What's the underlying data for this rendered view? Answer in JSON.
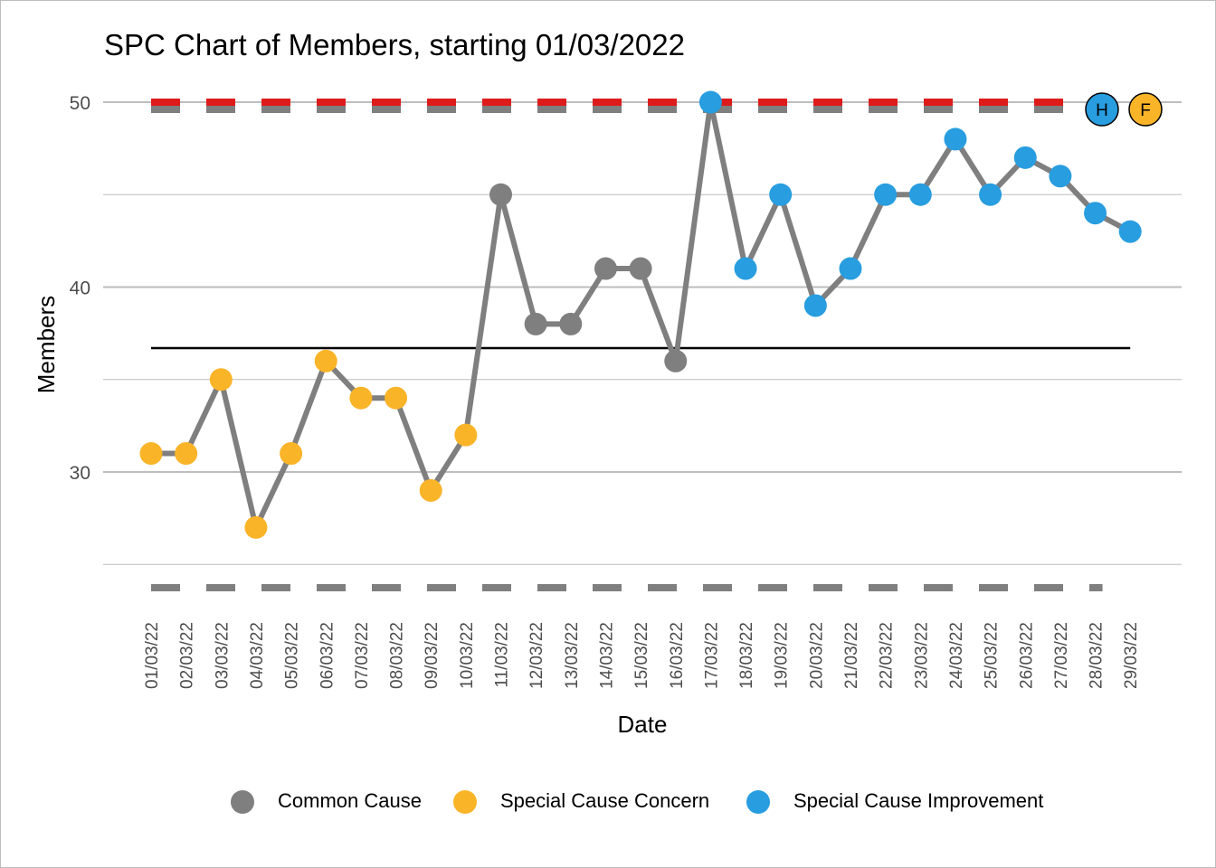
{
  "chart_data": {
    "type": "line",
    "title": "SPC Chart of Members, starting 01/03/2022",
    "xlabel": "Date",
    "ylabel": "Members",
    "ylim": [
      25,
      50
    ],
    "yticks": [
      30,
      40,
      50
    ],
    "grid": true,
    "legend_position": "bottom",
    "categories": [
      "01/03/22",
      "02/03/22",
      "03/03/22",
      "04/03/22",
      "05/03/22",
      "06/03/22",
      "07/03/22",
      "08/03/22",
      "09/03/22",
      "10/03/22",
      "11/03/22",
      "12/03/22",
      "13/03/22",
      "14/03/22",
      "15/03/22",
      "16/03/22",
      "17/03/22",
      "18/03/22",
      "19/03/22",
      "20/03/22",
      "21/03/22",
      "22/03/22",
      "23/03/22",
      "24/03/22",
      "25/03/22",
      "26/03/22",
      "27/03/22",
      "28/03/22",
      "29/03/22"
    ],
    "values": [
      31,
      31,
      35,
      27,
      31,
      36,
      34,
      34,
      29,
      32,
      45,
      38,
      38,
      41,
      41,
      36,
      50,
      41,
      45,
      39,
      41,
      45,
      45,
      48,
      45,
      47,
      46,
      44,
      43
    ],
    "point_class": [
      "concern",
      "concern",
      "concern",
      "concern",
      "concern",
      "concern",
      "concern",
      "concern",
      "concern",
      "concern",
      "common",
      "common",
      "common",
      "common",
      "common",
      "common",
      "improvement",
      "improvement",
      "improvement",
      "improvement",
      "improvement",
      "improvement",
      "improvement",
      "improvement",
      "improvement",
      "improvement",
      "improvement",
      "improvement",
      "improvement"
    ],
    "mean": 36.7,
    "upper_control_limit": 49.6,
    "lower_control_limit": 23.8,
    "target": 50,
    "legend": [
      {
        "key": "common",
        "label": "Common Cause",
        "color": "#7f7f7f"
      },
      {
        "key": "concern",
        "label": "Special Cause Concern",
        "color": "#fab428"
      },
      {
        "key": "improvement",
        "label": "Special Cause Improvement",
        "color": "#289de0"
      }
    ],
    "icons": [
      {
        "label": "H",
        "color": "#289de0"
      },
      {
        "label": "F",
        "color": "#fab428"
      }
    ],
    "colors": {
      "line": "#7f7f7f",
      "mean": "#000000",
      "control_limit": "#7f7f7f",
      "target": "#de1b1b",
      "grid": "#bdbdbd",
      "tick_text": "#4d4d4d"
    }
  }
}
